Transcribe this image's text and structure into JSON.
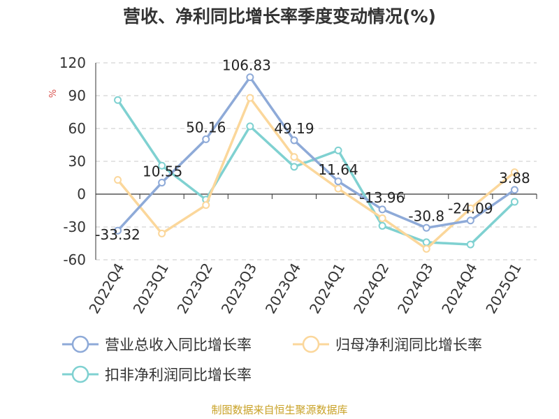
{
  "chart_data": {
    "type": "line",
    "title": "营收、净利同比增长率季度变动情况(%)",
    "ylabel": "%",
    "xlabel": "",
    "categories": [
      "2022Q4",
      "2023Q1",
      "2023Q2",
      "2023Q3",
      "2023Q4",
      "2024Q1",
      "2024Q2",
      "2024Q3",
      "2024Q4",
      "2025Q1"
    ],
    "ylim": [
      -60,
      120
    ],
    "yticks": [
      "120",
      "90",
      "60",
      "30",
      "0",
      "-30",
      "-60"
    ],
    "grid": "horizontal dashed",
    "legend_position": "bottom",
    "series": [
      {
        "name": "营业总收入同比增长率",
        "color": "#8eaad8",
        "values": [
          -33.32,
          10.55,
          50.16,
          106.83,
          49.19,
          11.64,
          -13.96,
          -30.8,
          -24.09,
          3.88
        ],
        "labels": [
          "-33.32",
          "10.55",
          "50.16",
          "106.83",
          "49.19",
          "11.64",
          "-13.96",
          "-30.8",
          "-24.09",
          "3.88"
        ]
      },
      {
        "name": "归母净利润同比增长率",
        "color": "#fbd79b",
        "values": [
          13,
          -36,
          -10,
          88,
          34,
          5,
          -22,
          -50,
          -13,
          20
        ]
      },
      {
        "name": "扣非净利润同比增长率",
        "color": "#7fd1d1",
        "values": [
          86,
          26,
          -5,
          62,
          25,
          40,
          -29,
          -44,
          -46,
          -7
        ]
      }
    ]
  },
  "source": "制图数据来自恒生聚源数据库"
}
